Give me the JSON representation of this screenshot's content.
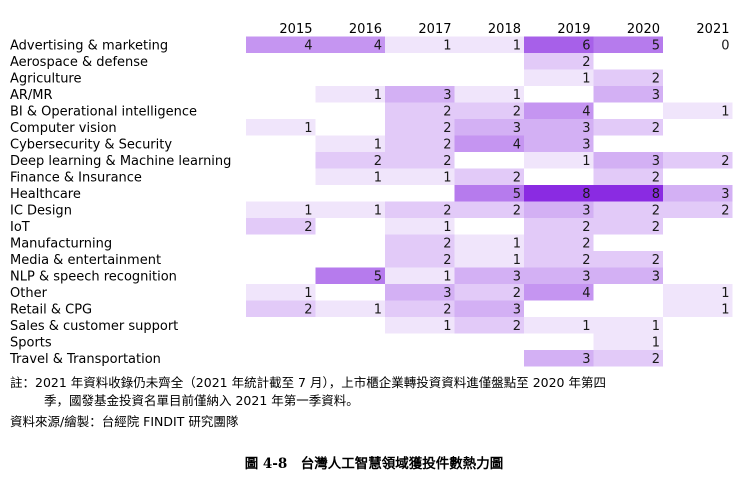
{
  "chart_data": {
    "type": "heatmap",
    "title": "",
    "xlabel": "",
    "ylabel": "",
    "x": [
      "2015",
      "2016",
      "2017",
      "2018",
      "2019",
      "2020",
      "2021"
    ],
    "y": [
      "Advertising & marketing",
      "Aerospace & defense",
      "Agriculture",
      "AR/MR",
      "BI & Operational intelligence",
      "Computer vision",
      "Cybersecurity & Security",
      "Deep learning & Machine learning",
      "Finance & Insurance",
      "Healthcare",
      "IC Design",
      "IoT",
      "Manufacturning",
      "Media & entertainment",
      "NLP & speech recognition",
      "Other",
      "Retail & CPG",
      "Sales & customer support",
      "Sports",
      "Travel & Transportation"
    ],
    "values": [
      [
        4,
        4,
        1,
        1,
        6,
        5,
        0
      ],
      [
        null,
        null,
        null,
        null,
        2,
        null,
        null
      ],
      [
        null,
        null,
        null,
        null,
        1,
        2,
        null
      ],
      [
        null,
        1,
        3,
        1,
        null,
        3,
        null
      ],
      [
        null,
        null,
        2,
        2,
        4,
        null,
        1
      ],
      [
        1,
        null,
        2,
        3,
        3,
        2,
        null
      ],
      [
        null,
        1,
        2,
        4,
        3,
        null,
        null
      ],
      [
        null,
        2,
        2,
        null,
        1,
        3,
        2
      ],
      [
        null,
        1,
        1,
        2,
        null,
        2,
        null
      ],
      [
        null,
        null,
        null,
        5,
        8,
        8,
        3
      ],
      [
        1,
        1,
        2,
        2,
        3,
        2,
        2
      ],
      [
        2,
        null,
        1,
        null,
        2,
        2,
        null
      ],
      [
        null,
        null,
        2,
        1,
        2,
        null,
        null
      ],
      [
        null,
        null,
        2,
        1,
        2,
        2,
        null
      ],
      [
        null,
        5,
        1,
        3,
        3,
        3,
        null
      ],
      [
        1,
        null,
        3,
        2,
        4,
        null,
        1
      ],
      [
        2,
        1,
        2,
        3,
        null,
        null,
        1
      ],
      [
        null,
        null,
        1,
        2,
        1,
        1,
        null
      ],
      [
        null,
        null,
        null,
        null,
        null,
        1,
        null
      ],
      [
        null,
        null,
        null,
        null,
        3,
        2,
        null
      ]
    ],
    "color_scale": {
      "max": 8,
      "low": "#ffffff",
      "high": "#8a2be2"
    },
    "grid": false
  },
  "notes": {
    "line1": "註：2021 年資料收錄仍未齊全（2021 年統計截至 7 月），上市櫃企業轉投資資料進僅盤點至 2020 年第四",
    "line2": "季，國發基金投資名單目前僅納入 2021 年第一季資料。",
    "source": "資料來源/繪製：台經院 FINDIT 研究團隊"
  },
  "caption": "圖 4-8　台灣人工智慧領域獲投件數熱力圖"
}
